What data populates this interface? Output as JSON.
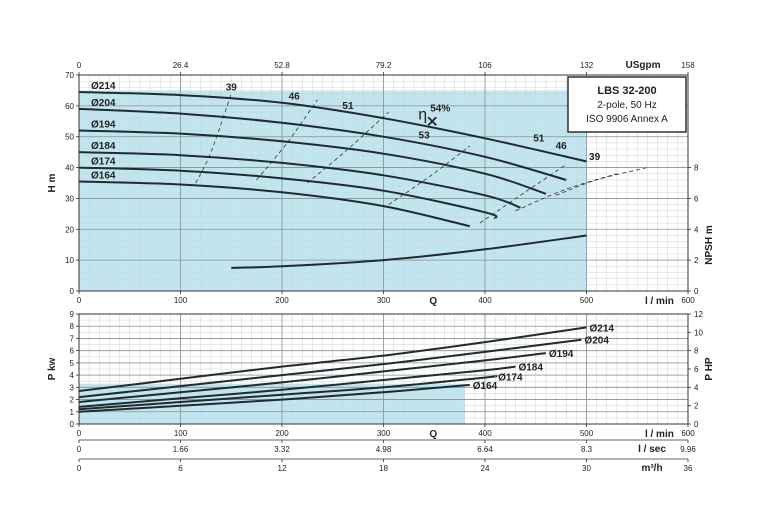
{
  "chart_data": [
    {
      "type": "line",
      "title": "",
      "info_box": [
        "LBS 32-200",
        "2-pole, 50 Hz",
        "ISO 9906 Annex A"
      ],
      "xlabel": "Q",
      "x_unit": "l / min",
      "xlim": [
        0,
        600
      ],
      "x_ticks": [
        0,
        100,
        200,
        300,
        400,
        500,
        600
      ],
      "top_axis": {
        "unit": "USgpm",
        "ticks": [
          "0",
          "26.4",
          "52.8",
          "79.2",
          "106",
          "132",
          "158"
        ]
      },
      "ylabel": "H m",
      "ylim": [
        0,
        70
      ],
      "y_ticks": [
        0,
        10,
        20,
        30,
        40,
        50,
        60,
        70
      ],
      "y2label": "NPSH m",
      "y2lim": [
        0,
        14
      ],
      "y2_ticks": [
        0,
        2,
        4,
        6,
        8
      ],
      "grid": true,
      "operating_range": {
        "x": [
          0,
          500
        ],
        "y_top": 65
      },
      "series": [
        {
          "name": "Ø214",
          "x": [
            0,
            100,
            200,
            300,
            400,
            500
          ],
          "y": [
            64.5,
            63.5,
            61,
            56,
            49.5,
            42
          ]
        },
        {
          "name": "Ø204",
          "x": [
            0,
            100,
            200,
            300,
            400,
            480
          ],
          "y": [
            59,
            57.5,
            54.5,
            50,
            43.5,
            36
          ]
        },
        {
          "name": "Ø194",
          "x": [
            0,
            100,
            200,
            300,
            400,
            460
          ],
          "y": [
            52,
            51,
            48.5,
            44.5,
            38,
            31.5
          ]
        },
        {
          "name": "Ø184",
          "x": [
            0,
            100,
            200,
            300,
            400,
            435
          ],
          "y": [
            45,
            44,
            41.5,
            37.5,
            31,
            27
          ]
        },
        {
          "name": "Ø174",
          "x": [
            0,
            100,
            200,
            300,
            400,
            410
          ],
          "y": [
            40,
            39,
            36.5,
            32.5,
            25.5,
            23.5
          ]
        },
        {
          "name": "Ø164",
          "x": [
            0,
            100,
            200,
            300,
            385
          ],
          "y": [
            35.5,
            34.5,
            32,
            27.5,
            21
          ]
        },
        {
          "name": "NPSH",
          "axis": "y2",
          "x": [
            150,
            200,
            300,
            400,
            500
          ],
          "y": [
            1.5,
            1.6,
            2.0,
            2.7,
            3.6
          ]
        }
      ],
      "efficiency_curves": [
        {
          "label": "39",
          "points": [
            [
              115,
              35
            ],
            [
              130,
              45
            ],
            [
              150,
              64
            ]
          ]
        },
        {
          "label": "46",
          "points": [
            [
              175,
              36
            ],
            [
              205,
              48
            ],
            [
              235,
              62
            ]
          ]
        },
        {
          "label": "51",
          "points": [
            [
              225,
              35
            ],
            [
              265,
              46
            ],
            [
              305,
              58
            ]
          ]
        },
        {
          "label": "53",
          "points": [
            [
              305,
              28
            ],
            [
              345,
              37
            ],
            [
              385,
              47
            ]
          ]
        },
        {
          "label": "51",
          "points": [
            [
              395,
              22
            ],
            [
              435,
              31
            ],
            [
              480,
              41
            ]
          ]
        },
        {
          "label": "46",
          "points": [
            [
              430,
              26
            ],
            [
              480,
              33
            ],
            [
              530,
              38
            ]
          ]
        },
        {
          "label": "39",
          "points": [
            [
              470,
              31
            ],
            [
              510,
              36
            ],
            [
              560,
              40
            ]
          ]
        }
      ],
      "eff_labels_curve": [
        {
          "text": "39",
          "x": 150,
          "y": 65
        },
        {
          "text": "46",
          "x": 212,
          "y": 62
        },
        {
          "text": "51",
          "x": 265,
          "y": 59
        },
        {
          "text": "53",
          "x": 340,
          "y": 49.5
        },
        {
          "text": "51",
          "x": 453,
          "y": 48.5
        },
        {
          "text": "46",
          "x": 475,
          "y": 46
        },
        {
          "text": "39",
          "x": 508,
          "y": 42.5
        }
      ],
      "best_efficiency": {
        "label": "η",
        "value": "54%",
        "x": 348,
        "y": 55
      }
    },
    {
      "type": "line",
      "ylabel": "P kw",
      "ylim": [
        0,
        9
      ],
      "y_ticks": [
        0,
        1,
        2,
        3,
        4,
        5,
        6,
        7,
        8,
        9
      ],
      "y2label": "P HP",
      "y2lim": [
        0,
        12
      ],
      "y2_ticks": [
        0,
        2,
        4,
        6,
        8,
        10,
        12
      ],
      "xlabel": "Q",
      "x_unit": "l / min",
      "xlim": [
        0,
        600
      ],
      "x_ticks": [
        0,
        100,
        200,
        300,
        400,
        500,
        600
      ],
      "extra_axes": [
        {
          "unit": "l / sec",
          "ticks": [
            "0",
            "1.66",
            "3.32",
            "4.98",
            "6.64",
            "8.3",
            "9.96"
          ]
        },
        {
          "unit": "m³/h",
          "ticks": [
            "0",
            "6",
            "12",
            "18",
            "24",
            "30",
            "36"
          ]
        }
      ],
      "grid": true,
      "operating_range": {
        "x": [
          0,
          380
        ],
        "y_top": 3.3
      },
      "series": [
        {
          "name": "Ø214",
          "x": [
            0,
            100,
            200,
            300,
            400,
            500
          ],
          "y": [
            2.7,
            3.7,
            4.7,
            5.6,
            6.7,
            7.9
          ]
        },
        {
          "name": "Ø204",
          "x": [
            0,
            100,
            200,
            300,
            400,
            495
          ],
          "y": [
            2.2,
            3.1,
            4.0,
            4.9,
            5.9,
            6.9
          ]
        },
        {
          "name": "Ø194",
          "x": [
            0,
            100,
            200,
            300,
            400,
            460
          ],
          "y": [
            1.8,
            2.6,
            3.4,
            4.3,
            5.2,
            5.8
          ]
        },
        {
          "name": "Ø184",
          "x": [
            0,
            100,
            200,
            300,
            400,
            430
          ],
          "y": [
            1.4,
            2.1,
            2.8,
            3.6,
            4.4,
            4.7
          ]
        },
        {
          "name": "Ø174",
          "x": [
            0,
            100,
            200,
            300,
            400,
            410
          ],
          "y": [
            1.2,
            1.8,
            2.4,
            3.0,
            3.8,
            3.9
          ]
        },
        {
          "name": "Ø164",
          "x": [
            0,
            100,
            200,
            300,
            385
          ],
          "y": [
            1.0,
            1.5,
            2.0,
            2.6,
            3.2
          ]
        }
      ]
    }
  ]
}
